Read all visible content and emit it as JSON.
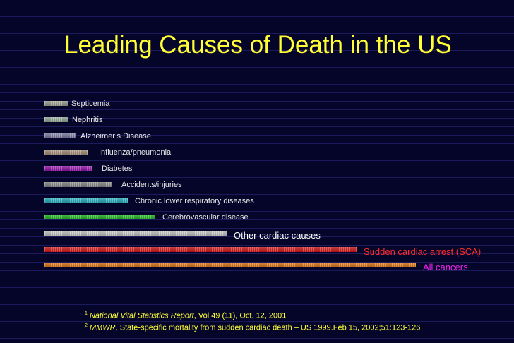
{
  "title": "Leading Causes of Death in the US",
  "chart_data": {
    "type": "bar",
    "orientation": "horizontal",
    "title": "Leading Causes of Death in the US",
    "categories": [
      "Septicemia",
      "Nephritis",
      "Alzheimer’s Disease",
      "Influenza/pneumonia",
      "Diabetes",
      "Accidents/injuries",
      "Chronic lower respiratory diseases",
      "Cerebrovascular disease",
      "Other cardiac causes",
      "Sudden cardiac arrest (SCA)",
      "All cancers"
    ],
    "values": [
      6,
      6,
      8,
      11,
      12,
      17,
      21,
      28,
      46,
      79,
      94
    ],
    "value_unit": "relative bar length (estimated; no axis shown)",
    "colors": [
      "#a5aa96",
      "#9ab4a0",
      "#7d7da8",
      "#b49b82",
      "#a014b4",
      "#8c8c8c",
      "#1eb4c3",
      "#1ec31e",
      "#d2d2d2",
      "#e11414",
      "#eb780f"
    ],
    "label_colors": [
      "#e8e8e8",
      "#e8e8e8",
      "#e8e8e8",
      "#e8e8e8",
      "#e8e8e8",
      "#e8e8e8",
      "#e8e8e8",
      "#e8e8e8",
      "#ffffff",
      "#ff2a2a",
      "#ee22ee"
    ],
    "xlabel": "",
    "ylabel": "",
    "grid": false,
    "legend": "none"
  },
  "footnotes": [
    {
      "sup": "1",
      "source": "National Vital Statistics Report",
      "detail": ",   Vol 49 (11), Oct. 12, 2001"
    },
    {
      "sup": "2",
      "source": "MMWR",
      "detail": ". State-specific mortality from sudden  cardiac death – US 1999.Feb 15,  2002;51:123-126"
    }
  ]
}
